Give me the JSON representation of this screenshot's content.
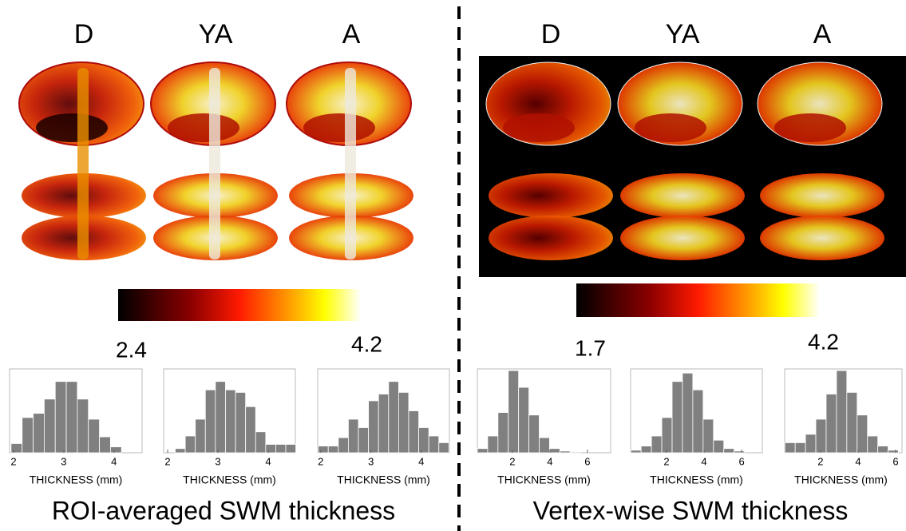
{
  "panels": [
    {
      "columns": [
        "D",
        "YA",
        "A"
      ],
      "colorbar": {
        "min": 2.4,
        "max": 4.2
      },
      "caption": "ROI-averaged SWM thickness"
    },
    {
      "columns": [
        "D",
        "YA",
        "A"
      ],
      "colorbar": {
        "min": 1.7,
        "max": 4.2
      },
      "caption": "Vertex-wise SWM thickness"
    }
  ],
  "chart_data": [
    {
      "type": "histogram",
      "xlabel": "THICKNESS (mm)",
      "color": "#808080",
      "xlim": [
        1.92,
        4.56
      ],
      "ylim": [
        0,
        100
      ],
      "xticks": [
        2,
        3,
        4
      ],
      "bins": [
        1.95,
        2.17,
        2.39,
        2.61,
        2.83,
        3.05,
        3.27,
        3.49,
        3.71,
        3.93,
        4.15
      ],
      "values": [
        11,
        42,
        47,
        64,
        85,
        85,
        64,
        40,
        19,
        7
      ]
    },
    {
      "type": "histogram",
      "xlabel": "THICKNESS (mm)",
      "color": "#808080",
      "xlim": [
        1.92,
        4.54
      ],
      "ylim": [
        0,
        100
      ],
      "xticks": [
        2,
        3,
        4
      ],
      "bins": [
        2.15,
        2.35,
        2.55,
        2.75,
        2.95,
        3.15,
        3.35,
        3.55,
        3.75,
        3.95,
        4.15,
        4.35,
        4.55
      ],
      "values": [
        5,
        20,
        40,
        75,
        85,
        75,
        72,
        55,
        25,
        10,
        10,
        10
      ]
    },
    {
      "type": "histogram",
      "xlabel": "THICKNESS (mm)",
      "color": "#808080",
      "xlim": [
        1.94,
        4.56
      ],
      "ylim": [
        0,
        100
      ],
      "xticks": [
        2,
        3,
        4
      ],
      "bins": [
        1.95,
        2.15,
        2.35,
        2.55,
        2.75,
        2.95,
        3.15,
        3.35,
        3.55,
        3.75,
        3.95,
        4.15,
        4.35,
        4.55
      ],
      "values": [
        8,
        8,
        18,
        40,
        30,
        62,
        70,
        85,
        72,
        50,
        30,
        20,
        12
      ]
    },
    {
      "type": "histogram",
      "xlabel": "THICKNESS (mm)",
      "color": "#808080",
      "xlim": [
        0.13,
        7.24
      ],
      "ylim": [
        0,
        100
      ],
      "xticks": [
        2,
        4,
        6
      ],
      "bins": [
        0.13,
        0.68,
        1.23,
        1.78,
        2.33,
        2.88,
        3.43,
        3.98,
        4.53,
        5.08,
        5.63
      ],
      "values": [
        5,
        20,
        48,
        98,
        78,
        45,
        18,
        5,
        2,
        1
      ]
    },
    {
      "type": "histogram",
      "xlabel": "THICKNESS (mm)",
      "color": "#808080",
      "xlim": [
        0.09,
        7.1
      ],
      "ylim": [
        0,
        100
      ],
      "xticks": [
        2,
        4,
        6
      ],
      "bins": [
        0.1,
        0.65,
        1.2,
        1.75,
        2.3,
        2.85,
        3.4,
        3.95,
        4.5,
        5.05,
        5.6,
        6.15
      ],
      "values": [
        3,
        8,
        20,
        42,
        85,
        95,
        75,
        40,
        15,
        5,
        2
      ]
    },
    {
      "type": "histogram",
      "xlabel": "THICKNESS (mm)",
      "color": "#808080",
      "xlim": [
        0.09,
        6.34
      ],
      "ylim": [
        0,
        100
      ],
      "xticks": [
        2,
        4,
        6
      ],
      "bins": [
        0.1,
        0.65,
        1.2,
        1.75,
        2.3,
        2.85,
        3.4,
        3.95,
        4.5,
        5.05,
        5.6,
        6.15
      ],
      "values": [
        12,
        12,
        22,
        40,
        70,
        98,
        72,
        45,
        20,
        8,
        3
      ]
    }
  ]
}
